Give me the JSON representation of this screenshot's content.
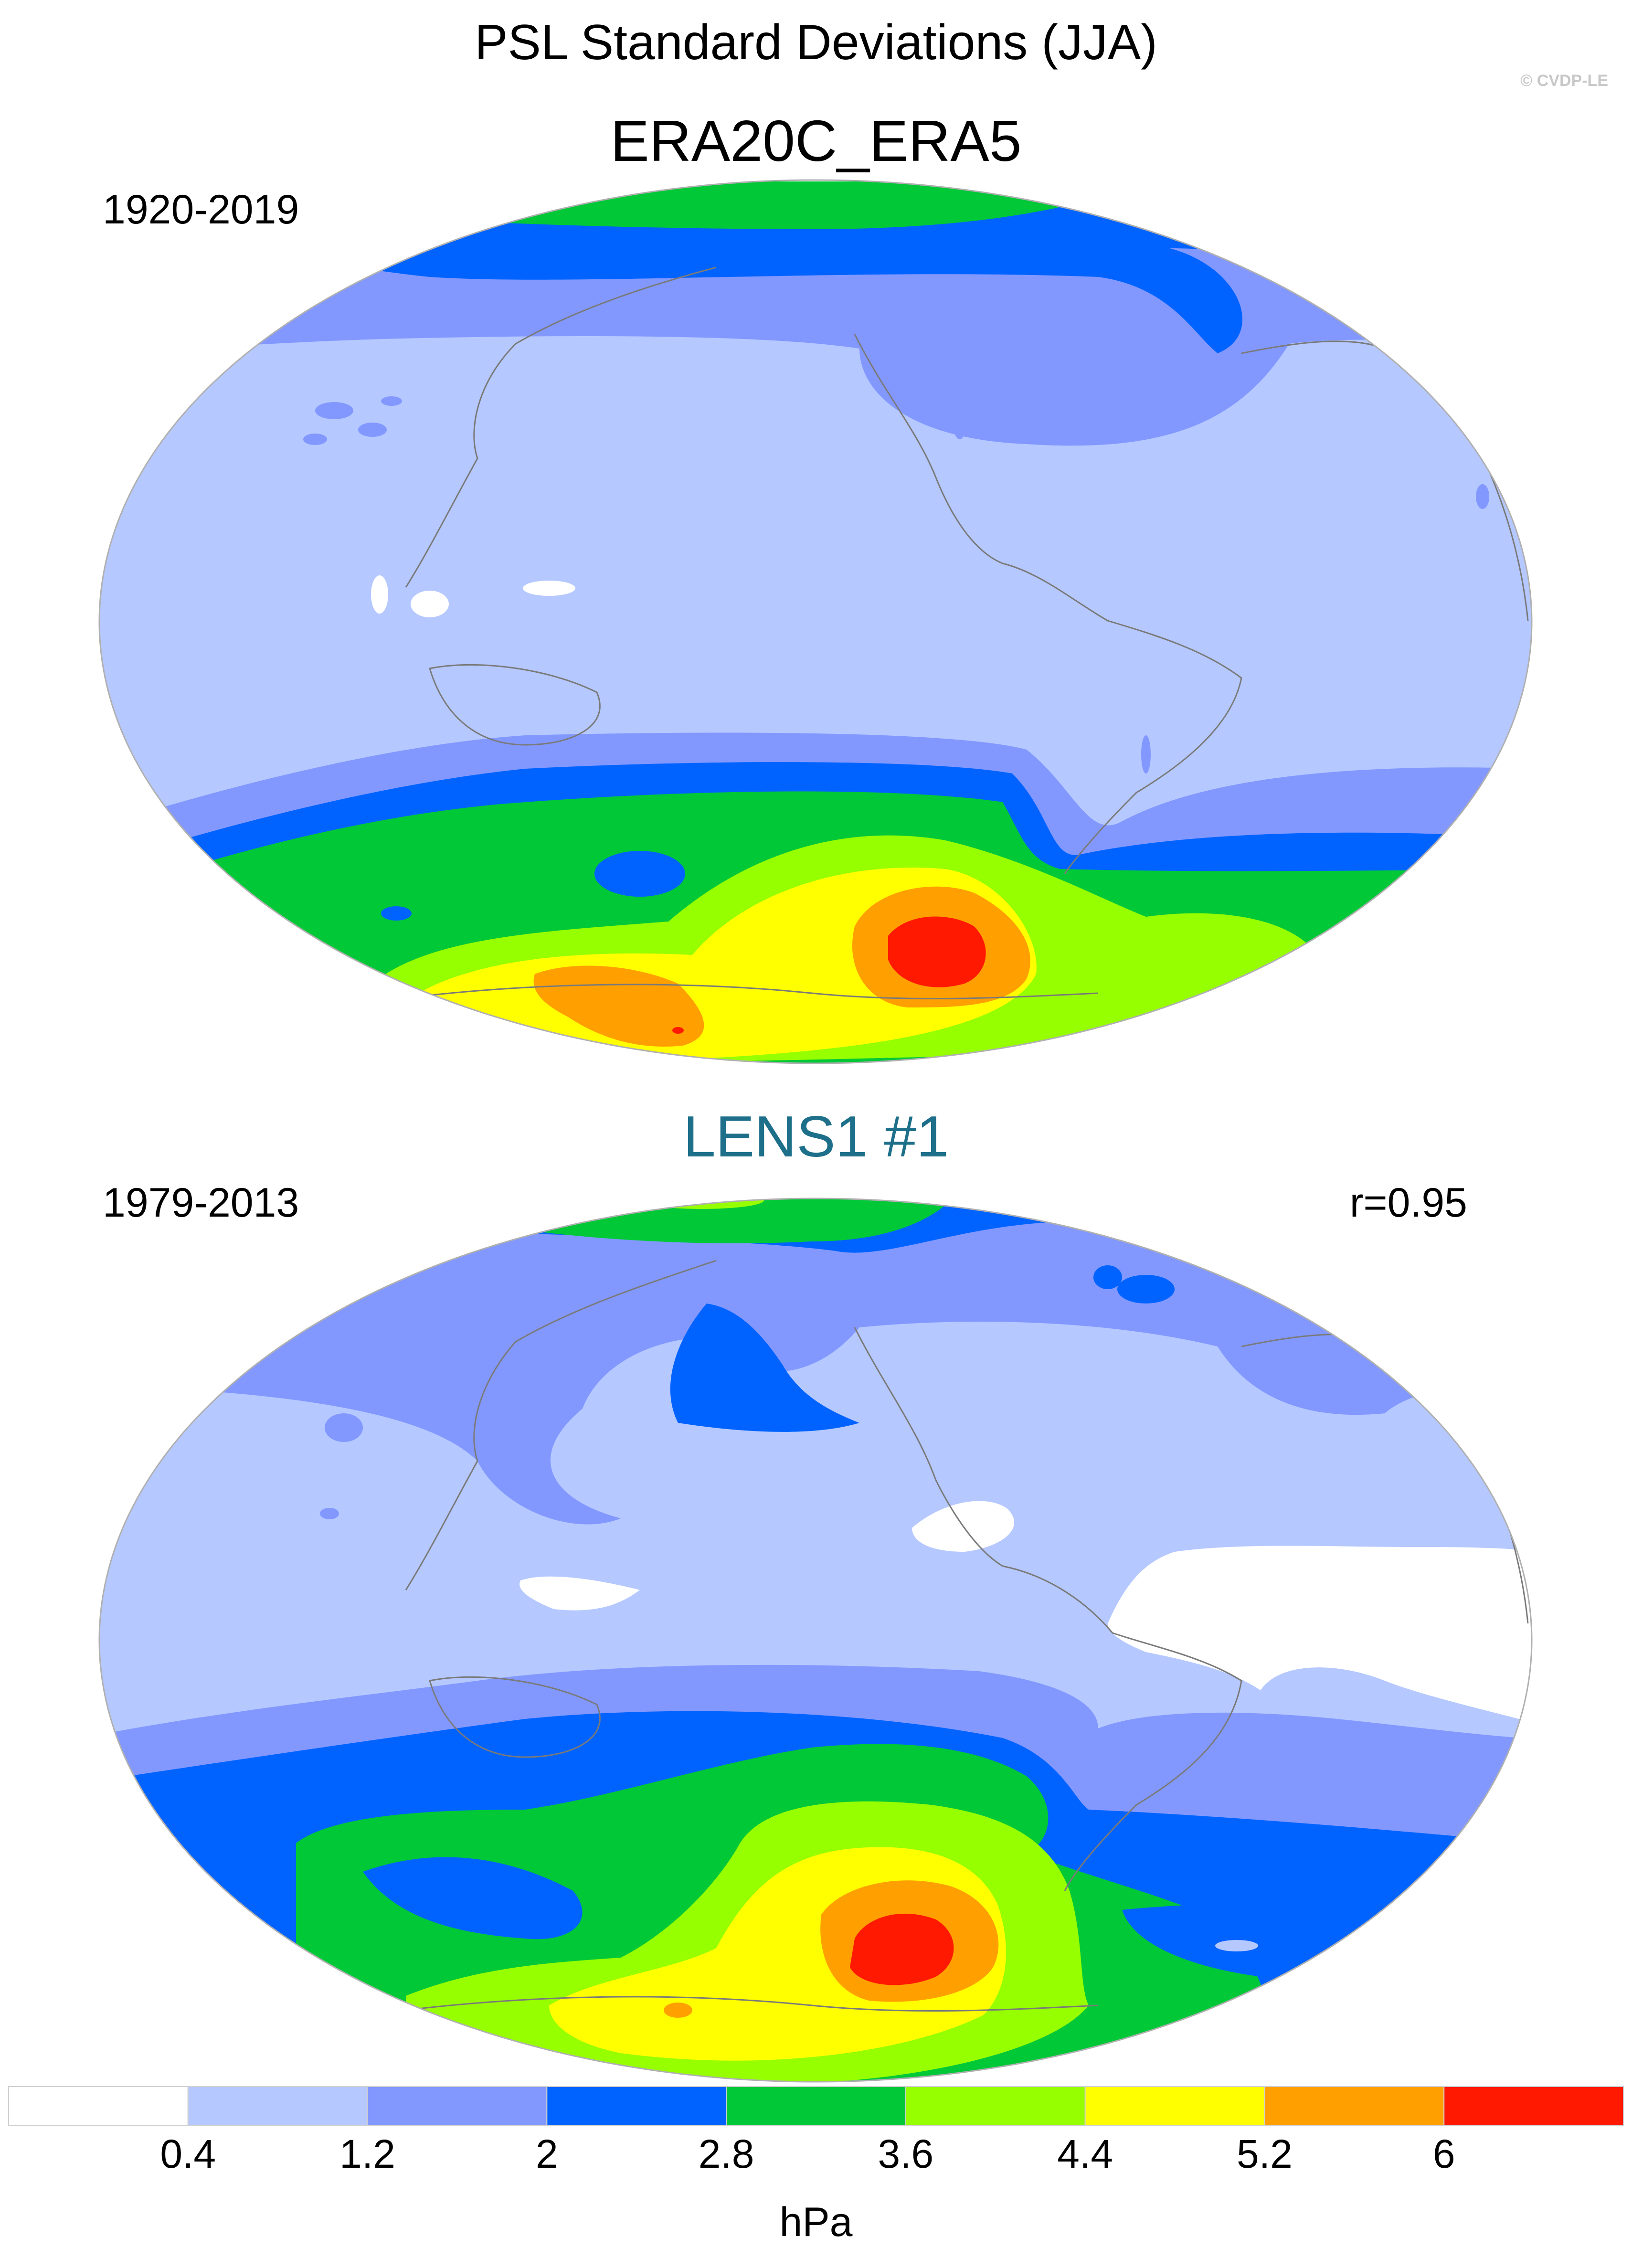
{
  "title": "PSL Standard Deviations (JJA)",
  "credit": "© CVDP-LE",
  "panels": [
    {
      "name": "ERA20C_ERA5",
      "period": "1920-2019",
      "correlation": ""
    },
    {
      "name": "LENS1 #1",
      "period": "1979-2013",
      "correlation": "r=0.95"
    }
  ],
  "colorbar": {
    "ticks": [
      "0.4",
      "1.2",
      "2",
      "2.8",
      "3.6",
      "4.4",
      "5.2",
      "6"
    ],
    "colors": [
      "#ffffff",
      "#b5c8ff",
      "#8298ff",
      "#0063ff",
      "#00c837",
      "#96ff00",
      "#ffff00",
      "#ffa000",
      "#ff1900"
    ],
    "units": "hPa"
  },
  "colors": {
    "coastline": "#7a7a7a",
    "panel_title_bottom": "#1d6f8a"
  }
}
